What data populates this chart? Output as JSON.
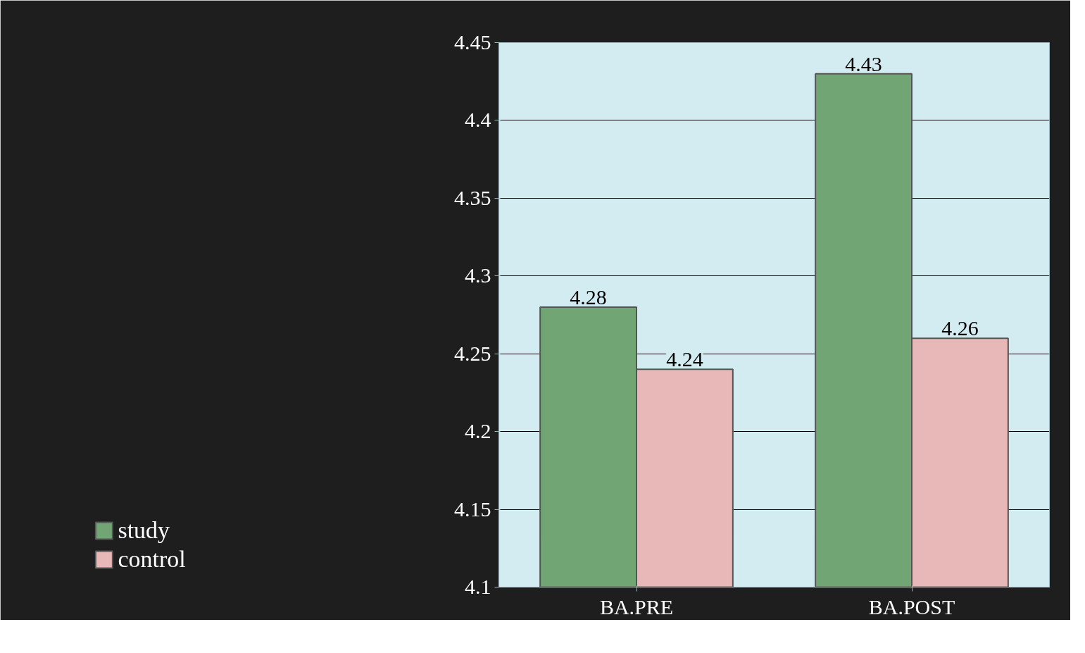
{
  "chart_data": {
    "type": "bar",
    "categories": [
      "BA.PRE",
      "BA.POST"
    ],
    "series": [
      {
        "name": "study",
        "color": "#72a574",
        "values": [
          4.28,
          4.43
        ]
      },
      {
        "name": "control",
        "color": "#e8b7b7",
        "values": [
          4.24,
          4.26
        ]
      }
    ],
    "ylim": [
      4.1,
      4.45
    ],
    "yticks": [
      4.1,
      4.15,
      4.2,
      4.25,
      4.3,
      4.35,
      4.4,
      4.45
    ],
    "grid": "y",
    "legend": "bottom left",
    "data_labels": true
  }
}
